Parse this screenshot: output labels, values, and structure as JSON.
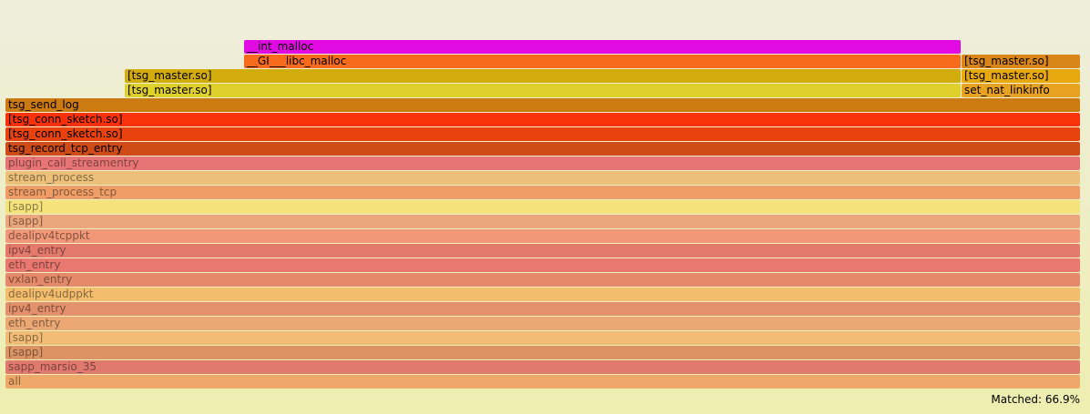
{
  "matched": {
    "label": "Matched: 66.9%"
  },
  "frames": [
    {
      "name": "__int_malloc",
      "color": "#e20ae2",
      "dim": false
    },
    {
      "name": "__GI___libc_malloc",
      "color": "#f86a1c",
      "dim": false
    },
    {
      "name": "[tsg_master.so]",
      "color": "#d98518",
      "dim": false
    },
    {
      "name": "[tsg_master.so]",
      "color": "#d2ab0c",
      "dim": false
    },
    {
      "name": "[tsg_master.so]",
      "color": "#e8a80f",
      "dim": false
    },
    {
      "name": "[tsg_master.so]",
      "color": "#e0d02c",
      "dim": false
    },
    {
      "name": "set_nat_linkinfo",
      "color": "#e8a222",
      "dim": false
    },
    {
      "name": "tsg_send_log",
      "color": "#cc7a12",
      "dim": false
    },
    {
      "name": "[tsg_conn_sketch.so]",
      "color": "#fa320c",
      "dim": false
    },
    {
      "name": "[tsg_conn_sketch.so]",
      "color": "#e8420f",
      "dim": false
    },
    {
      "name": "tsg_record_tcp_entry",
      "color": "#cf4b17",
      "dim": false
    },
    {
      "name": "plugin_call_streamentry",
      "color": "#e87575",
      "dim": true
    },
    {
      "name": "stream_process",
      "color": "#edc07a",
      "dim": true
    },
    {
      "name": "stream_process_tcp",
      "color": "#ef9e68",
      "dim": true
    },
    {
      "name": "[sapp]",
      "color": "#f5e27a",
      "dim": true
    },
    {
      "name": "[sapp]",
      "color": "#eba67c",
      "dim": true
    },
    {
      "name": "dealipv4tcppkt",
      "color": "#f09878",
      "dim": true
    },
    {
      "name": "ipv4_entry",
      "color": "#e47a6c",
      "dim": true
    },
    {
      "name": "eth_entry",
      "color": "#e87870",
      "dim": true
    },
    {
      "name": "vxlan_entry",
      "color": "#e48a6a",
      "dim": true
    },
    {
      "name": "dealipv4udppkt",
      "color": "#f2be6e",
      "dim": true
    },
    {
      "name": "ipv4_entry",
      "color": "#e3906c",
      "dim": true
    },
    {
      "name": "eth_entry",
      "color": "#eca874",
      "dim": true
    },
    {
      "name": "[sapp]",
      "color": "#f2bc76",
      "dim": true
    },
    {
      "name": "[sapp]",
      "color": "#dd9464",
      "dim": true
    },
    {
      "name": "sapp_marsio_35",
      "color": "#e07a6e",
      "dim": true
    },
    {
      "name": "all",
      "color": "#eea86a",
      "dim": true
    }
  ]
}
